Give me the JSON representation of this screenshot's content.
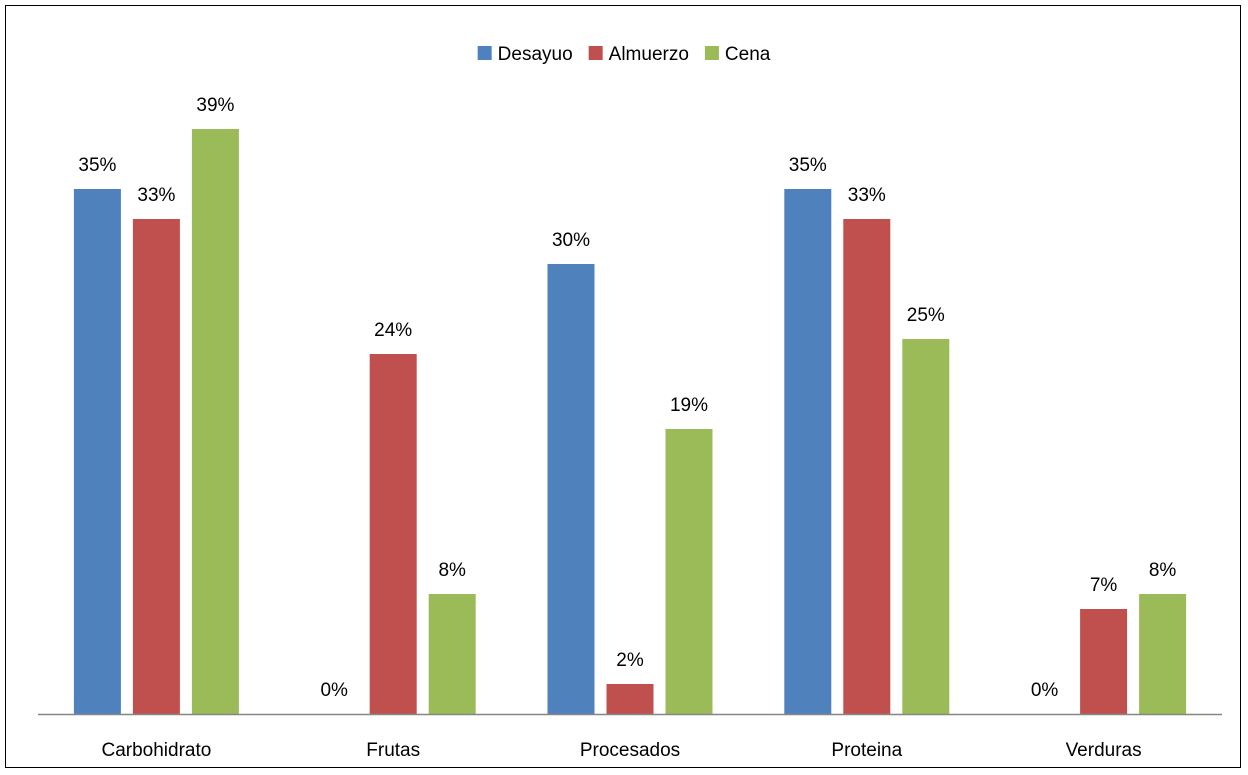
{
  "chart_data": {
    "type": "bar",
    "title": "",
    "xlabel": "",
    "ylabel": "",
    "categories": [
      "Carbohidrato",
      "Frutas",
      "Procesados",
      "Proteina",
      "Verduras"
    ],
    "series": [
      {
        "name": "Desayuo",
        "color": "#4F81BD",
        "values": [
          35,
          0,
          30,
          35,
          0
        ],
        "labels": [
          "35%",
          "0%",
          "30%",
          "35%",
          "0%"
        ]
      },
      {
        "name": "Almuerzo",
        "color": "#C0504D",
        "values": [
          33,
          24,
          2,
          33,
          7
        ],
        "labels": [
          "33%",
          "24%",
          "2%",
          "33%",
          "7%"
        ]
      },
      {
        "name": "Cena",
        "color": "#9BBB59",
        "values": [
          39,
          8,
          19,
          25,
          8
        ],
        "labels": [
          "39%",
          "8%",
          "19%",
          "25%",
          "8%"
        ]
      }
    ],
    "value_unit": "%",
    "ylim": [
      0,
      42
    ],
    "grid": false,
    "legend_position": "top-center",
    "axis_line_color": "#868686"
  }
}
